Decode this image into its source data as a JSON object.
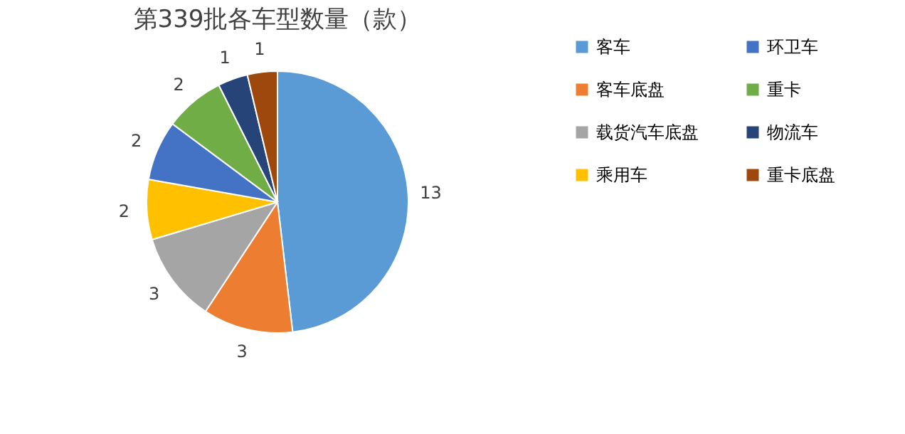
{
  "chart_data": {
    "type": "pie",
    "title": "第339批各车型数量（款）",
    "categories": [
      "客车",
      "客车底盘",
      "载货汽车底盘",
      "乘用车",
      "环卫车",
      "重卡",
      "物流车",
      "重卡底盘"
    ],
    "values": [
      13,
      3,
      3,
      2,
      2,
      2,
      1,
      1
    ],
    "colors": [
      "#5b9bd5",
      "#ed7d31",
      "#a5a5a5",
      "#ffc000",
      "#4472c4",
      "#70ad47",
      "#264478",
      "#9e480e"
    ],
    "data_labels": true,
    "legend": "right"
  }
}
